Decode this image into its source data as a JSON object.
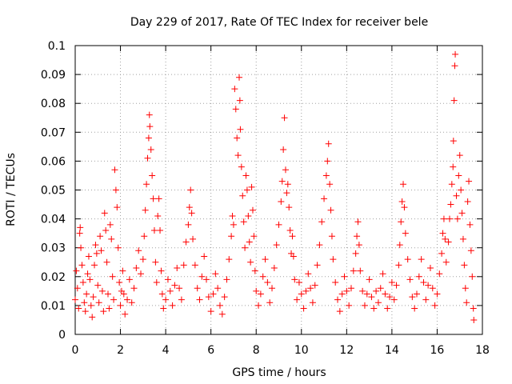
{
  "chart_data": {
    "type": "scatter",
    "title": "Day 229 of 2017, Rate Of TEC Index for receiver bele",
    "xlabel": "GPS time / hours",
    "ylabel": "ROTI / TECUs",
    "xlim": [
      0,
      18
    ],
    "ylim": [
      0,
      0.1
    ],
    "xticks": [
      "0",
      "2",
      "4",
      "6",
      "8",
      "10",
      "12",
      "14",
      "16",
      "18"
    ],
    "yticks": [
      "0",
      "0.01",
      "0.02",
      "0.03",
      "0.04",
      "0.05",
      "0.06",
      "0.07",
      "0.08",
      "0.09",
      "0.1"
    ],
    "grid": true,
    "legend": "none",
    "marker": "plus",
    "color": "#ff0000",
    "series": [
      {
        "points": [
          [
            0.0,
            0.012
          ],
          [
            0.05,
            0.022
          ],
          [
            0.1,
            0.016
          ],
          [
            0.15,
            0.009
          ],
          [
            0.2,
            0.035
          ],
          [
            0.22,
            0.037
          ],
          [
            0.25,
            0.03
          ],
          [
            0.3,
            0.024
          ],
          [
            0.35,
            0.018
          ],
          [
            0.4,
            0.011
          ],
          [
            0.45,
            0.008
          ],
          [
            0.5,
            0.014
          ],
          [
            0.55,
            0.021
          ],
          [
            0.6,
            0.027
          ],
          [
            0.65,
            0.019
          ],
          [
            0.7,
            0.01
          ],
          [
            0.75,
            0.006
          ],
          [
            0.8,
            0.013
          ],
          [
            0.85,
            0.024
          ],
          [
            0.9,
            0.031
          ],
          [
            0.95,
            0.028
          ],
          [
            1.0,
            0.017
          ],
          [
            1.05,
            0.011
          ],
          [
            1.1,
            0.034
          ],
          [
            1.15,
            0.029
          ],
          [
            1.2,
            0.015
          ],
          [
            1.25,
            0.008
          ],
          [
            1.3,
            0.042
          ],
          [
            1.35,
            0.036
          ],
          [
            1.4,
            0.025
          ],
          [
            1.45,
            0.014
          ],
          [
            1.5,
            0.009
          ],
          [
            1.55,
            0.038
          ],
          [
            1.6,
            0.033
          ],
          [
            1.65,
            0.02
          ],
          [
            1.7,
            0.012
          ],
          [
            1.75,
            0.057
          ],
          [
            1.8,
            0.05
          ],
          [
            1.85,
            0.044
          ],
          [
            1.9,
            0.03
          ],
          [
            1.95,
            0.018
          ],
          [
            2.0,
            0.01
          ],
          [
            2.05,
            0.015
          ],
          [
            2.1,
            0.022
          ],
          [
            2.15,
            0.014
          ],
          [
            2.2,
            0.007
          ],
          [
            2.3,
            0.012
          ],
          [
            2.4,
            0.019
          ],
          [
            2.5,
            0.011
          ],
          [
            2.6,
            0.016
          ],
          [
            2.7,
            0.023
          ],
          [
            2.8,
            0.029
          ],
          [
            2.9,
            0.021
          ],
          [
            3.0,
            0.026
          ],
          [
            3.05,
            0.034
          ],
          [
            3.1,
            0.043
          ],
          [
            3.15,
            0.052
          ],
          [
            3.2,
            0.061
          ],
          [
            3.25,
            0.068
          ],
          [
            3.28,
            0.076
          ],
          [
            3.3,
            0.072
          ],
          [
            3.35,
            0.064
          ],
          [
            3.4,
            0.055
          ],
          [
            3.45,
            0.047
          ],
          [
            3.5,
            0.036
          ],
          [
            3.55,
            0.025
          ],
          [
            3.6,
            0.018
          ],
          [
            3.65,
            0.041
          ],
          [
            3.7,
            0.047
          ],
          [
            3.75,
            0.036
          ],
          [
            3.8,
            0.022
          ],
          [
            3.85,
            0.014
          ],
          [
            3.9,
            0.009
          ],
          [
            4.0,
            0.012
          ],
          [
            4.1,
            0.019
          ],
          [
            4.2,
            0.015
          ],
          [
            4.3,
            0.01
          ],
          [
            4.4,
            0.017
          ],
          [
            4.5,
            0.023
          ],
          [
            4.6,
            0.016
          ],
          [
            4.7,
            0.012
          ],
          [
            4.8,
            0.024
          ],
          [
            4.9,
            0.032
          ],
          [
            5.0,
            0.038
          ],
          [
            5.05,
            0.044
          ],
          [
            5.1,
            0.05
          ],
          [
            5.15,
            0.042
          ],
          [
            5.2,
            0.033
          ],
          [
            5.3,
            0.024
          ],
          [
            5.4,
            0.016
          ],
          [
            5.5,
            0.012
          ],
          [
            5.6,
            0.02
          ],
          [
            5.7,
            0.027
          ],
          [
            5.8,
            0.019
          ],
          [
            5.9,
            0.013
          ],
          [
            6.0,
            0.008
          ],
          [
            6.1,
            0.014
          ],
          [
            6.2,
            0.021
          ],
          [
            6.3,
            0.016
          ],
          [
            6.4,
            0.01
          ],
          [
            6.5,
            0.007
          ],
          [
            6.6,
            0.013
          ],
          [
            6.7,
            0.019
          ],
          [
            6.8,
            0.026
          ],
          [
            6.9,
            0.034
          ],
          [
            6.95,
            0.041
          ],
          [
            7.0,
            0.038
          ],
          [
            7.05,
            0.085
          ],
          [
            7.1,
            0.078
          ],
          [
            7.15,
            0.068
          ],
          [
            7.2,
            0.062
          ],
          [
            7.25,
            0.089
          ],
          [
            7.28,
            0.081
          ],
          [
            7.3,
            0.071
          ],
          [
            7.35,
            0.058
          ],
          [
            7.4,
            0.048
          ],
          [
            7.45,
            0.039
          ],
          [
            7.5,
            0.03
          ],
          [
            7.55,
            0.055
          ],
          [
            7.6,
            0.05
          ],
          [
            7.65,
            0.041
          ],
          [
            7.7,
            0.032
          ],
          [
            7.75,
            0.025
          ],
          [
            7.8,
            0.051
          ],
          [
            7.85,
            0.043
          ],
          [
            7.9,
            0.034
          ],
          [
            7.95,
            0.022
          ],
          [
            8.0,
            0.015
          ],
          [
            8.1,
            0.01
          ],
          [
            8.2,
            0.014
          ],
          [
            8.3,
            0.02
          ],
          [
            8.4,
            0.026
          ],
          [
            8.5,
            0.018
          ],
          [
            8.6,
            0.011
          ],
          [
            8.7,
            0.016
          ],
          [
            8.8,
            0.023
          ],
          [
            8.9,
            0.031
          ],
          [
            9.0,
            0.038
          ],
          [
            9.1,
            0.046
          ],
          [
            9.15,
            0.053
          ],
          [
            9.2,
            0.064
          ],
          [
            9.25,
            0.075
          ],
          [
            9.3,
            0.057
          ],
          [
            9.35,
            0.049
          ],
          [
            9.4,
            0.052
          ],
          [
            9.45,
            0.044
          ],
          [
            9.5,
            0.036
          ],
          [
            9.55,
            0.028
          ],
          [
            9.6,
            0.034
          ],
          [
            9.65,
            0.027
          ],
          [
            9.7,
            0.019
          ],
          [
            9.8,
            0.012
          ],
          [
            9.9,
            0.018
          ],
          [
            10.0,
            0.014
          ],
          [
            10.1,
            0.009
          ],
          [
            10.2,
            0.015
          ],
          [
            10.3,
            0.021
          ],
          [
            10.4,
            0.016
          ],
          [
            10.5,
            0.011
          ],
          [
            10.6,
            0.017
          ],
          [
            10.7,
            0.024
          ],
          [
            10.8,
            0.031
          ],
          [
            10.9,
            0.039
          ],
          [
            11.0,
            0.047
          ],
          [
            11.1,
            0.055
          ],
          [
            11.15,
            0.06
          ],
          [
            11.2,
            0.066
          ],
          [
            11.25,
            0.052
          ],
          [
            11.3,
            0.043
          ],
          [
            11.35,
            0.034
          ],
          [
            11.4,
            0.026
          ],
          [
            11.5,
            0.018
          ],
          [
            11.6,
            0.012
          ],
          [
            11.7,
            0.008
          ],
          [
            11.8,
            0.014
          ],
          [
            11.9,
            0.02
          ],
          [
            12.0,
            0.015
          ],
          [
            12.1,
            0.01
          ],
          [
            12.2,
            0.016
          ],
          [
            12.3,
            0.022
          ],
          [
            12.4,
            0.028
          ],
          [
            12.45,
            0.034
          ],
          [
            12.5,
            0.039
          ],
          [
            12.55,
            0.031
          ],
          [
            12.6,
            0.022
          ],
          [
            12.7,
            0.015
          ],
          [
            12.8,
            0.01
          ],
          [
            12.9,
            0.014
          ],
          [
            13.0,
            0.019
          ],
          [
            13.1,
            0.013
          ],
          [
            13.2,
            0.009
          ],
          [
            13.3,
            0.015
          ],
          [
            13.4,
            0.011
          ],
          [
            13.5,
            0.016
          ],
          [
            13.6,
            0.021
          ],
          [
            13.7,
            0.014
          ],
          [
            13.8,
            0.009
          ],
          [
            13.9,
            0.013
          ],
          [
            14.0,
            0.018
          ],
          [
            14.1,
            0.012
          ],
          [
            14.2,
            0.017
          ],
          [
            14.3,
            0.024
          ],
          [
            14.35,
            0.031
          ],
          [
            14.4,
            0.039
          ],
          [
            14.45,
            0.046
          ],
          [
            14.5,
            0.052
          ],
          [
            14.55,
            0.044
          ],
          [
            14.6,
            0.035
          ],
          [
            14.7,
            0.026
          ],
          [
            14.8,
            0.019
          ],
          [
            14.9,
            0.013
          ],
          [
            15.0,
            0.009
          ],
          [
            15.1,
            0.014
          ],
          [
            15.2,
            0.02
          ],
          [
            15.3,
            0.026
          ],
          [
            15.4,
            0.018
          ],
          [
            15.5,
            0.012
          ],
          [
            15.6,
            0.017
          ],
          [
            15.7,
            0.023
          ],
          [
            15.8,
            0.016
          ],
          [
            15.9,
            0.01
          ],
          [
            16.0,
            0.014
          ],
          [
            16.1,
            0.021
          ],
          [
            16.2,
            0.028
          ],
          [
            16.25,
            0.035
          ],
          [
            16.3,
            0.04
          ],
          [
            16.35,
            0.033
          ],
          [
            16.4,
            0.025
          ],
          [
            16.5,
            0.032
          ],
          [
            16.55,
            0.04
          ],
          [
            16.6,
            0.045
          ],
          [
            16.65,
            0.052
          ],
          [
            16.7,
            0.058
          ],
          [
            16.72,
            0.067
          ],
          [
            16.75,
            0.081
          ],
          [
            16.78,
            0.093
          ],
          [
            16.8,
            0.097
          ],
          [
            16.85,
            0.048
          ],
          [
            16.9,
            0.04
          ],
          [
            16.95,
            0.055
          ],
          [
            17.0,
            0.062
          ],
          [
            17.05,
            0.05
          ],
          [
            17.1,
            0.042
          ],
          [
            17.15,
            0.033
          ],
          [
            17.2,
            0.024
          ],
          [
            17.25,
            0.016
          ],
          [
            17.3,
            0.011
          ],
          [
            17.35,
            0.046
          ],
          [
            17.4,
            0.053
          ],
          [
            17.45,
            0.038
          ],
          [
            17.5,
            0.029
          ],
          [
            17.55,
            0.02
          ],
          [
            17.6,
            0.009
          ],
          [
            17.62,
            0.005
          ]
        ]
      }
    ]
  }
}
